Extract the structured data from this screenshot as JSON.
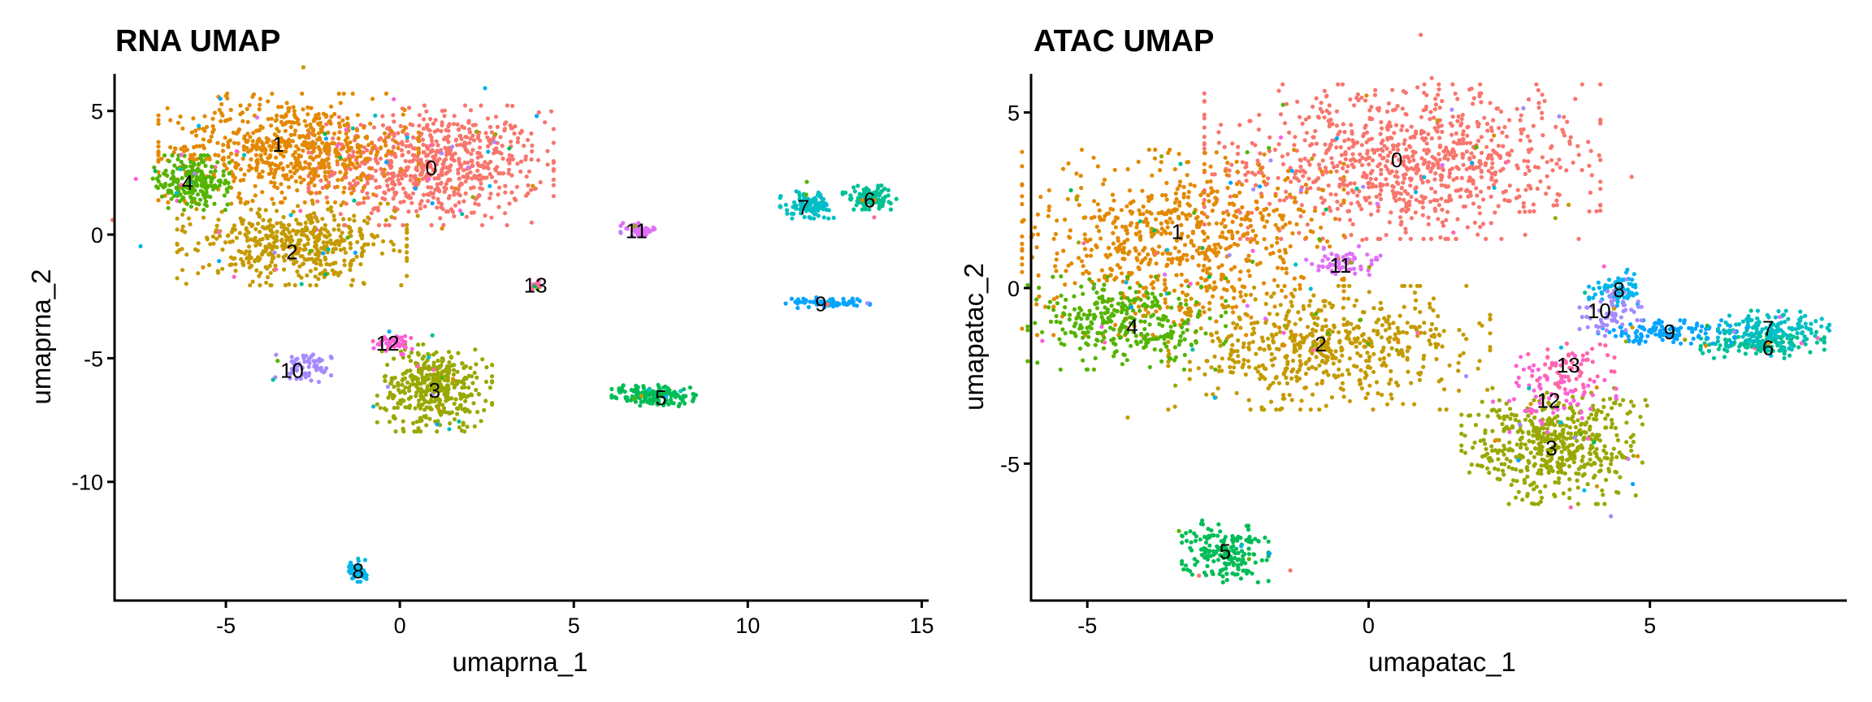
{
  "chart_data": [
    {
      "type": "scatter",
      "title": "RNA UMAP",
      "xlabel": "umaprna_1",
      "ylabel": "umaprna_2",
      "xlim": [
        -8.2,
        15.2
      ],
      "ylim": [
        -14.8,
        6.5
      ],
      "xticks": [
        -5,
        0,
        5,
        10,
        15
      ],
      "yticks": [
        -10,
        -5,
        0,
        5
      ],
      "xtick_labels": [
        "-5",
        "0",
        "5",
        "10",
        "15"
      ],
      "ytick_labels": [
        "-10",
        "-5",
        "0",
        "5"
      ],
      "grid": false,
      "legend": "none",
      "clusters": [
        {
          "id": "0",
          "label_x": 0.9,
          "label_y": 2.7,
          "center": [
            0.9,
            2.8
          ],
          "spread": [
            1.6,
            1.1
          ],
          "n": 700
        },
        {
          "id": "1",
          "label_x": -3.5,
          "label_y": 3.65,
          "center": [
            -3.2,
            3.5
          ],
          "spread": [
            1.7,
            1.0
          ],
          "n": 620
        },
        {
          "id": "2",
          "label_x": -3.1,
          "label_y": -0.7,
          "center": [
            -3.1,
            -0.4
          ],
          "spread": [
            1.5,
            0.75
          ],
          "n": 480
        },
        {
          "id": "3",
          "label_x": 1.0,
          "label_y": -6.3,
          "center": [
            1.0,
            -6.2
          ],
          "spread": [
            0.75,
            0.8
          ],
          "n": 380
        },
        {
          "id": "4",
          "label_x": -6.1,
          "label_y": 2.1,
          "center": [
            -6.0,
            2.1
          ],
          "spread": [
            0.5,
            0.5
          ],
          "n": 200
        },
        {
          "id": "5",
          "label_x": 7.5,
          "label_y": -6.6,
          "center": [
            7.3,
            -6.5
          ],
          "spread": [
            0.55,
            0.2
          ],
          "n": 160
        },
        {
          "id": "6",
          "label_x": 13.5,
          "label_y": 1.4,
          "center": [
            13.5,
            1.5
          ],
          "spread": [
            0.35,
            0.22
          ],
          "n": 110
        },
        {
          "id": "7",
          "label_x": 11.6,
          "label_y": 1.1,
          "center": [
            11.7,
            1.2
          ],
          "spread": [
            0.35,
            0.25
          ],
          "n": 110
        },
        {
          "id": "8",
          "label_x": -1.2,
          "label_y": -13.6,
          "center": [
            -1.2,
            -13.6
          ],
          "spread": [
            0.12,
            0.2
          ],
          "n": 50
        },
        {
          "id": "9",
          "label_x": 12.1,
          "label_y": -2.8,
          "center": [
            12.3,
            -2.75
          ],
          "spread": [
            0.55,
            0.1
          ],
          "n": 70
        },
        {
          "id": "10",
          "label_x": -3.1,
          "label_y": -5.5,
          "center": [
            -2.7,
            -5.3
          ],
          "spread": [
            0.4,
            0.3
          ],
          "n": 60
        },
        {
          "id": "11",
          "label_x": 6.8,
          "label_y": 0.15,
          "center": [
            6.9,
            0.2
          ],
          "spread": [
            0.25,
            0.12
          ],
          "n": 45
        },
        {
          "id": "12",
          "label_x": -0.35,
          "label_y": -4.4,
          "center": [
            -0.2,
            -4.4
          ],
          "spread": [
            0.25,
            0.2
          ],
          "n": 45
        },
        {
          "id": "13",
          "label_x": 3.9,
          "label_y": -2.05,
          "center": [
            3.9,
            -2.0
          ],
          "spread": [
            0.12,
            0.12
          ],
          "n": 14
        }
      ]
    },
    {
      "type": "scatter",
      "title": "ATAC UMAP",
      "xlabel": "umapatac_1",
      "ylabel": "umapatac_2",
      "xlim": [
        -6.0,
        8.5
      ],
      "ylim": [
        -8.9,
        6.1
      ],
      "xticks": [
        -5,
        0,
        5
      ],
      "yticks": [
        -5,
        0,
        5
      ],
      "xtick_labels": [
        "-5",
        "0",
        "5"
      ],
      "ytick_labels": [
        "-5",
        "0",
        "5"
      ],
      "grid": false,
      "legend": "none",
      "clusters": [
        {
          "id": "0",
          "label_x": 0.5,
          "label_y": 3.65,
          "center": [
            0.6,
            3.6
          ],
          "spread": [
            1.6,
            1.0
          ],
          "n": 900
        },
        {
          "id": "1",
          "label_x": -3.4,
          "label_y": 1.6,
          "center": [
            -3.3,
            1.3
          ],
          "spread": [
            1.3,
            1.2
          ],
          "n": 700
        },
        {
          "id": "2",
          "label_x": -0.85,
          "label_y": -1.6,
          "center": [
            -0.7,
            -1.7
          ],
          "spread": [
            1.3,
            0.8
          ],
          "n": 560
        },
        {
          "id": "3",
          "label_x": 3.25,
          "label_y": -4.55,
          "center": [
            3.3,
            -4.5
          ],
          "spread": [
            0.75,
            0.75
          ],
          "n": 500
        },
        {
          "id": "4",
          "label_x": -4.2,
          "label_y": -1.1,
          "center": [
            -4.3,
            -1.0
          ],
          "spread": [
            0.8,
            0.6
          ],
          "n": 300
        },
        {
          "id": "5",
          "label_x": -2.55,
          "label_y": -7.5,
          "center": [
            -2.55,
            -7.5
          ],
          "spread": [
            0.35,
            0.4
          ],
          "n": 180
        },
        {
          "id": "6",
          "label_x": 7.1,
          "label_y": -1.7,
          "center": [
            7.0,
            -1.6
          ],
          "spread": [
            0.5,
            0.18
          ],
          "n": 140
        },
        {
          "id": "7",
          "label_x": 7.1,
          "label_y": -1.15,
          "center": [
            7.2,
            -1.2
          ],
          "spread": [
            0.45,
            0.25
          ],
          "n": 140
        },
        {
          "id": "8",
          "label_x": 4.45,
          "label_y": -0.05,
          "center": [
            4.4,
            0.0
          ],
          "spread": [
            0.22,
            0.25
          ],
          "n": 80
        },
        {
          "id": "9",
          "label_x": 5.35,
          "label_y": -1.25,
          "center": [
            5.4,
            -1.25
          ],
          "spread": [
            0.6,
            0.15
          ],
          "n": 110
        },
        {
          "id": "10",
          "label_x": 4.1,
          "label_y": -0.65,
          "center": [
            4.3,
            -0.7
          ],
          "spread": [
            0.25,
            0.3
          ],
          "n": 60
        },
        {
          "id": "11",
          "label_x": -0.5,
          "label_y": 0.65,
          "center": [
            -0.45,
            0.75
          ],
          "spread": [
            0.3,
            0.2
          ],
          "n": 60
        },
        {
          "id": "12",
          "label_x": 3.2,
          "label_y": -3.2,
          "center": [
            3.3,
            -3.0
          ],
          "spread": [
            0.5,
            0.5
          ],
          "n": 70
        },
        {
          "id": "13",
          "label_x": 3.55,
          "label_y": -2.2,
          "center": [
            3.6,
            -2.3
          ],
          "spread": [
            0.35,
            0.35
          ],
          "n": 60
        }
      ]
    }
  ],
  "palette": {
    "0": "#F8766D",
    "1": "#E38900",
    "2": "#C49A00",
    "3": "#99A800",
    "4": "#53B400",
    "5": "#00BC56",
    "6": "#00C094",
    "7": "#00BFC4",
    "8": "#00B6EB",
    "9": "#06A4FF",
    "10": "#A58AFF",
    "11": "#DF70F8",
    "12": "#FB61D7",
    "13": "#FF66A8"
  }
}
